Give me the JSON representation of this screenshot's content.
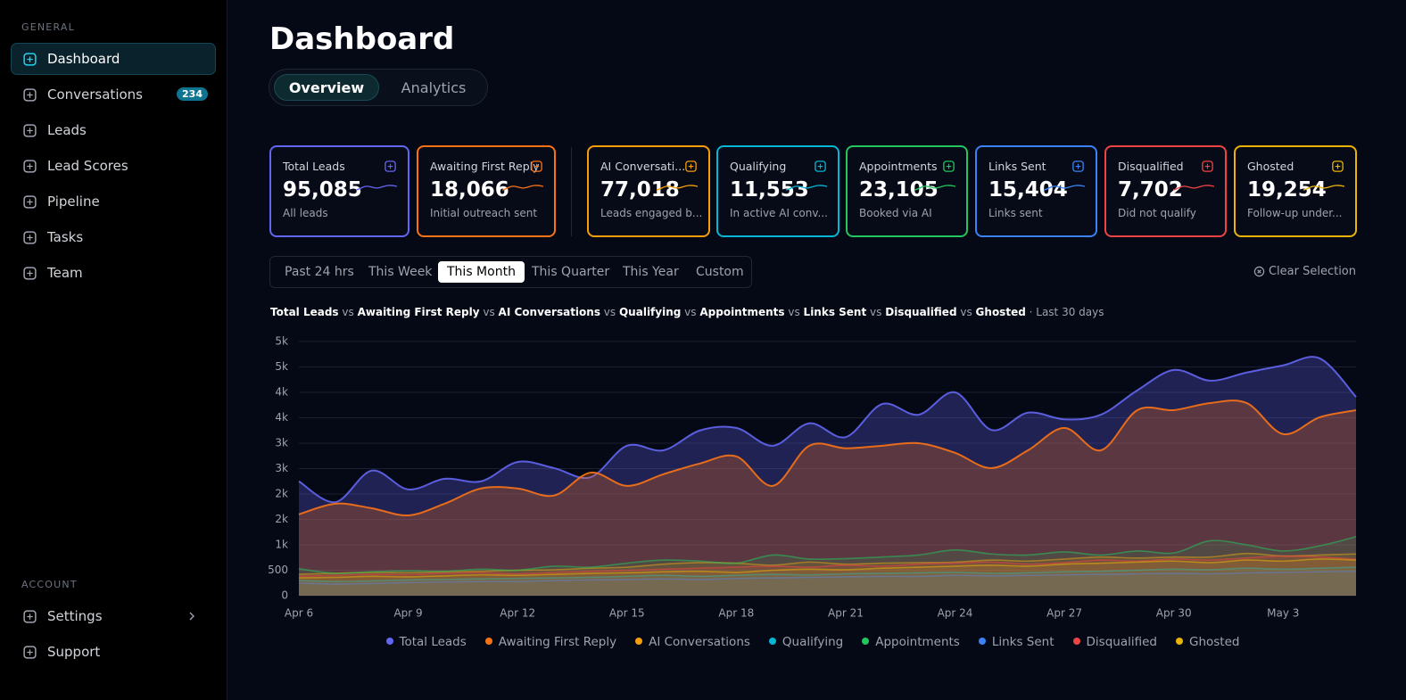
{
  "sidebar": {
    "sections": [
      {
        "title": "GENERAL",
        "items": [
          {
            "label": "Dashboard"
          },
          {
            "label": "Conversations",
            "badge": "234"
          },
          {
            "label": "Leads"
          },
          {
            "label": "Lead Scores"
          },
          {
            "label": "Pipeline"
          },
          {
            "label": "Tasks"
          },
          {
            "label": "Team"
          }
        ]
      },
      {
        "title": "ACCOUNT",
        "items": [
          {
            "label": "Settings"
          },
          {
            "label": "Support"
          }
        ]
      }
    ],
    "active_item": 0
  },
  "header": {
    "title": "Dashboard",
    "tabs": [
      "Overview",
      "Analytics"
    ],
    "active_tab": 0
  },
  "cards": [
    {
      "title": "Total Leads",
      "value": "95,085",
      "subtitle": "All leads"
    },
    {
      "title": "Awaiting First Reply",
      "value": "18,066",
      "subtitle": "Initial outreach sent"
    },
    {
      "title": "AI Conversati...",
      "value": "77,018",
      "subtitle": "Leads engaged b..."
    },
    {
      "title": "Qualifying",
      "value": "11,553",
      "subtitle": "In active AI conv..."
    },
    {
      "title": "Appointments",
      "value": "23,105",
      "subtitle": "Booked via AI"
    },
    {
      "title": "Links Sent",
      "value": "15,404",
      "subtitle": "Links sent"
    },
    {
      "title": "Disqualified",
      "value": "7,702",
      "subtitle": "Did not qualify"
    },
    {
      "title": "Ghosted",
      "value": "19,254",
      "subtitle": "Follow-up under..."
    }
  ],
  "filters": {
    "options": [
      "Past 24 hrs",
      "This Week",
      "This Month",
      "This Quarter",
      "This Year",
      "Custom"
    ],
    "active": 2,
    "clear": "Clear Selection"
  },
  "chart_data": {
    "type": "area",
    "separator": "vs",
    "period": "· Last 30 days",
    "categories": [
      "Apr 6",
      null,
      null,
      "Apr 9",
      null,
      null,
      "Apr 12",
      null,
      null,
      "Apr 15",
      null,
      null,
      "Apr 18",
      null,
      null,
      "Apr 21",
      null,
      null,
      "Apr 24",
      null,
      null,
      "Apr 27",
      null,
      null,
      "Apr 30",
      null,
      null,
      "May 3",
      null,
      null
    ],
    "ylim": [
      0,
      5000
    ],
    "yticks": [
      {
        "value": 5000,
        "label": "5k"
      },
      {
        "value": 4500,
        "label": "5k"
      },
      {
        "value": 4000,
        "label": "4k"
      },
      {
        "value": 3500,
        "label": "4k"
      },
      {
        "value": 3000,
        "label": "3k"
      },
      {
        "value": 2500,
        "label": "3k"
      },
      {
        "value": 2000,
        "label": "2k"
      },
      {
        "value": 1500,
        "label": "2k"
      },
      {
        "value": 1000,
        "label": "1k"
      },
      500,
      0
    ],
    "grid": true,
    "series": [
      {
        "name": "Total Leads",
        "color": "#6366f1",
        "values": [
          2250,
          1840,
          2460,
          2090,
          2300,
          2250,
          2630,
          2510,
          2330,
          2950,
          2860,
          3250,
          3300,
          2950,
          3390,
          3120,
          3770,
          3560,
          4000,
          3260,
          3600,
          3470,
          3560,
          4040,
          4440,
          4230,
          4390,
          4530,
          4670,
          3910
        ]
      },
      {
        "name": "Awaiting First Reply",
        "color": "#f97316",
        "values": [
          1600,
          1810,
          1720,
          1580,
          1810,
          2110,
          2110,
          1970,
          2420,
          2160,
          2390,
          2600,
          2740,
          2160,
          2950,
          2900,
          2950,
          3000,
          2810,
          2510,
          2860,
          3300,
          2860,
          3650,
          3650,
          3790,
          3790,
          3180,
          3510,
          3650
        ]
      },
      {
        "name": "AI Conversations",
        "color": "#f59e0b",
        "values": [
          420,
          440,
          460,
          450,
          470,
          480,
          500,
          510,
          540,
          560,
          620,
          650,
          640,
          600,
          660,
          620,
          640,
          650,
          660,
          700,
          680,
          720,
          760,
          740,
          760,
          760,
          830,
          780,
          800,
          820
        ]
      },
      {
        "name": "Qualifying",
        "color": "#06b6d4",
        "values": [
          300,
          280,
          290,
          310,
          320,
          330,
          340,
          350,
          360,
          380,
          400,
          380,
          400,
          420,
          410,
          430,
          440,
          450,
          460,
          440,
          450,
          470,
          480,
          500,
          520,
          510,
          540,
          520,
          540,
          560
        ]
      },
      {
        "name": "Appointments",
        "color": "#22c55e",
        "values": [
          530,
          440,
          470,
          490,
          480,
          520,
          500,
          580,
          560,
          640,
          700,
          680,
          640,
          800,
          720,
          730,
          760,
          800,
          900,
          820,
          800,
          860,
          800,
          880,
          840,
          1080,
          1000,
          880,
          980,
          1160
        ]
      },
      {
        "name": "Links Sent",
        "color": "#3b82f6",
        "values": [
          250,
          230,
          240,
          260,
          270,
          280,
          280,
          300,
          310,
          320,
          330,
          320,
          340,
          350,
          360,
          370,
          380,
          380,
          400,
          390,
          400,
          410,
          420,
          430,
          440,
          430,
          450,
          460,
          470,
          480
        ]
      },
      {
        "name": "Disqualified",
        "color": "#ef4444",
        "values": [
          380,
          400,
          420,
          410,
          440,
          450,
          430,
          460,
          480,
          500,
          520,
          540,
          560,
          580,
          560,
          600,
          580,
          620,
          640,
          660,
          620,
          650,
          700,
          680,
          720,
          700,
          740,
          780,
          760,
          720
        ]
      },
      {
        "name": "Ghosted",
        "color": "#eab308",
        "values": [
          350,
          360,
          380,
          370,
          390,
          410,
          400,
          420,
          440,
          450,
          470,
          480,
          460,
          500,
          520,
          510,
          540,
          560,
          580,
          600,
          580,
          620,
          640,
          660,
          680,
          650,
          700,
          680,
          720,
          700
        ]
      }
    ]
  }
}
